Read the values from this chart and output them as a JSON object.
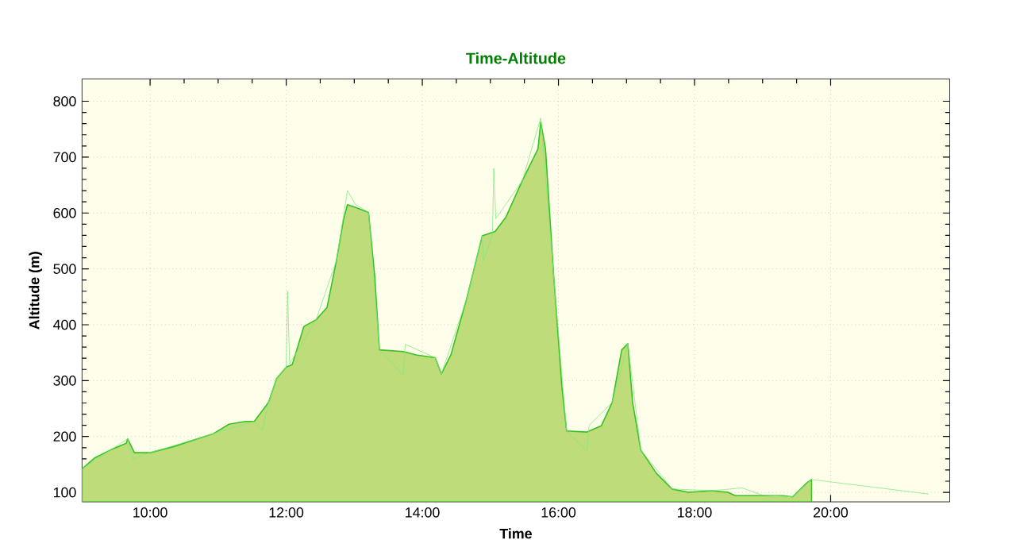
{
  "chart_data": {
    "type": "area",
    "title": "Time-Altitude",
    "xlabel": "Time",
    "ylabel": "Altitude (m)",
    "xlim": [
      9.0,
      21.75
    ],
    "ylim": [
      83,
      840
    ],
    "xticks": [
      {
        "value": 10,
        "label": "10:00"
      },
      {
        "value": 12,
        "label": "12:00"
      },
      {
        "value": 14,
        "label": "14:00"
      },
      {
        "value": 16,
        "label": "16:00"
      },
      {
        "value": 18,
        "label": "18:00"
      },
      {
        "value": 20,
        "label": "20:00"
      }
    ],
    "yticks": [
      100,
      200,
      300,
      400,
      500,
      600,
      700,
      800
    ],
    "grid": true,
    "marker": "none",
    "line_style": "solid",
    "series": [
      {
        "color": "#bfdc7a",
        "x": [
          9.0,
          9.19,
          9.42,
          9.65,
          9.67,
          9.77,
          10.0,
          10.35,
          10.7,
          10.93,
          11.16,
          11.4,
          11.53,
          11.74,
          11.86,
          12.0,
          12.09,
          12.26,
          12.44,
          12.6,
          12.74,
          12.84,
          12.9,
          13.02,
          13.21,
          13.3,
          13.37,
          13.72,
          13.91,
          14.19,
          14.28,
          14.42,
          14.65,
          14.88,
          15.07,
          15.23,
          15.47,
          15.7,
          15.74,
          15.81,
          15.93,
          16.05,
          16.12,
          16.42,
          16.63,
          16.79,
          16.93,
          17.02,
          17.09,
          17.21,
          17.44,
          17.67,
          17.91,
          18.26,
          18.49,
          18.6,
          19.3,
          19.44,
          19.65,
          19.72
        ],
        "values": [
          142,
          162,
          176,
          188,
          196,
          171,
          171,
          182,
          196,
          205,
          222,
          227,
          227,
          261,
          304,
          324,
          329,
          397,
          409,
          431,
          516,
          587,
          615,
          610,
          601,
          488,
          355,
          352,
          346,
          341,
          312,
          346,
          446,
          559,
          567,
          593,
          658,
          715,
          763,
          715,
          488,
          290,
          210,
          208,
          219,
          261,
          355,
          366,
          261,
          176,
          134,
          106,
          100,
          103,
          100,
          94,
          94,
          92,
          117,
          123
        ]
      },
      {
        "type": "line",
        "color": "#80e880",
        "x": [
          9.0,
          9.67,
          9.75,
          10.0,
          10.93,
          11.53,
          11.65,
          11.74,
          11.86,
          12.0,
          12.02,
          12.05,
          12.44,
          12.74,
          12.9,
          13.02,
          13.21,
          13.37,
          13.72,
          13.75,
          14.19,
          14.28,
          14.65,
          14.88,
          14.9,
          15.03,
          15.05,
          15.08,
          15.47,
          15.74,
          15.93,
          16.12,
          16.42,
          16.45,
          16.79,
          17.02,
          17.21,
          17.67,
          18.26,
          18.7,
          19.0,
          19.44,
          19.72,
          21.44
        ],
        "values": [
          142,
          196,
          160,
          171,
          205,
          227,
          210,
          261,
          304,
          324,
          460,
          330,
          409,
          516,
          640,
          615,
          601,
          355,
          310,
          365,
          341,
          312,
          446,
          559,
          515,
          560,
          680,
          590,
          658,
          770,
          488,
          210,
          174,
          220,
          261,
          366,
          176,
          106,
          103,
          108,
          95,
          92,
          123,
          97
        ]
      }
    ]
  }
}
